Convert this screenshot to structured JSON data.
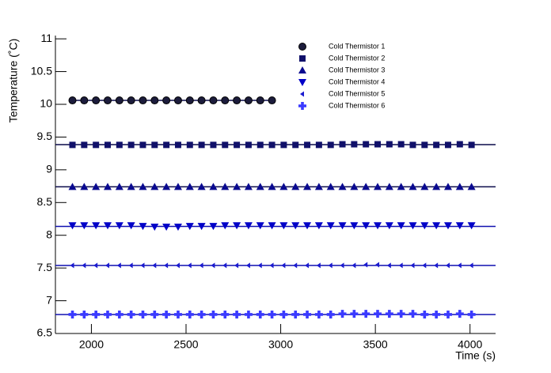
{
  "chart_data": {
    "type": "scatter",
    "x_label": "Time (s)",
    "y_label": "Temperature (˚C)",
    "xlim": [
      1810,
      4135
    ],
    "ylim": [
      6.5,
      11.05
    ],
    "xticks": [
      2000,
      2500,
      3000,
      3500,
      4000
    ],
    "yticks": [
      6.5,
      7,
      7.5,
      8,
      8.5,
      9,
      9.5,
      10,
      10.5,
      11
    ],
    "legend": "top-right",
    "x": [
      1900,
      1962,
      2024,
      2086,
      2148,
      2210,
      2272,
      2334,
      2396,
      2458,
      2520,
      2582,
      2644,
      2706,
      2768,
      2830,
      2892,
      2954,
      3016,
      3078,
      3140,
      3202,
      3264,
      3326,
      3388,
      3450,
      3512,
      3574,
      3636,
      3698,
      3760,
      3822,
      3884,
      3946,
      4008
    ],
    "series": [
      {
        "name": "Cold Thermistor 1",
        "color": "#1c1c3c",
        "marker": "circle",
        "fit": 10.06,
        "values": [
          10.06,
          10.06,
          10.06,
          10.06,
          10.06,
          10.06,
          10.06,
          10.06,
          10.06,
          10.06,
          10.06,
          10.06,
          10.06,
          10.06,
          10.06,
          10.06,
          10.06,
          10.06,
          null,
          null,
          null,
          null,
          null,
          null,
          null,
          null,
          null,
          null,
          null,
          null,
          null,
          null,
          null,
          null,
          null
        ]
      },
      {
        "name": "Cold Thermistor 2",
        "color": "#10106a",
        "marker": "square",
        "fit": 9.385,
        "values": [
          9.38,
          9.38,
          9.38,
          9.38,
          9.38,
          9.38,
          9.38,
          9.38,
          9.38,
          9.38,
          9.38,
          9.38,
          9.38,
          9.38,
          9.38,
          9.38,
          9.38,
          9.38,
          9.38,
          9.38,
          9.38,
          9.38,
          9.38,
          9.39,
          9.39,
          9.39,
          9.39,
          9.39,
          9.39,
          9.38,
          9.38,
          9.38,
          9.38,
          9.39,
          9.38
        ]
      },
      {
        "name": "Cold Thermistor 3",
        "color": "#0a0a90",
        "marker": "triangle-up",
        "fit": 8.74,
        "values": [
          8.74,
          8.74,
          8.74,
          8.74,
          8.74,
          8.74,
          8.74,
          8.74,
          8.74,
          8.74,
          8.74,
          8.74,
          8.74,
          8.74,
          8.74,
          8.74,
          8.74,
          8.74,
          8.74,
          8.74,
          8.74,
          8.74,
          8.74,
          8.74,
          8.74,
          8.74,
          8.74,
          8.74,
          8.74,
          8.74,
          8.74,
          8.74,
          8.74,
          8.74,
          8.74
        ]
      },
      {
        "name": "Cold Thermistor 4",
        "color": "#0000c8",
        "marker": "triangle-down",
        "fit": 8.135,
        "values": [
          8.15,
          8.15,
          8.15,
          8.15,
          8.15,
          8.15,
          8.14,
          8.13,
          8.13,
          8.13,
          8.14,
          8.14,
          8.14,
          8.15,
          8.15,
          8.15,
          8.15,
          8.15,
          8.15,
          8.15,
          8.15,
          8.15,
          8.15,
          8.15,
          8.15,
          8.15,
          8.15,
          8.15,
          8.15,
          8.15,
          8.15,
          8.15,
          8.15,
          8.15,
          8.15
        ]
      },
      {
        "name": "Cold Thermistor 5",
        "color": "#1a1ad0",
        "marker": "triangle-left",
        "fit": 7.54,
        "values": [
          7.54,
          7.54,
          7.54,
          7.54,
          7.54,
          7.54,
          7.54,
          7.54,
          7.54,
          7.54,
          7.54,
          7.54,
          7.54,
          7.54,
          7.54,
          7.54,
          7.54,
          7.54,
          7.54,
          7.54,
          7.54,
          7.54,
          7.54,
          7.54,
          7.54,
          7.55,
          7.55,
          7.54,
          7.54,
          7.54,
          7.54,
          7.54,
          7.54,
          7.54,
          7.54
        ]
      },
      {
        "name": "Cold Thermistor 6",
        "color": "#3a3aff",
        "marker": "cross",
        "fit": 6.79,
        "values": [
          6.79,
          6.79,
          6.79,
          6.79,
          6.79,
          6.79,
          6.79,
          6.79,
          6.79,
          6.79,
          6.79,
          6.79,
          6.79,
          6.79,
          6.79,
          6.79,
          6.79,
          6.79,
          6.79,
          6.79,
          6.79,
          6.79,
          6.79,
          6.8,
          6.8,
          6.8,
          6.8,
          6.8,
          6.8,
          6.8,
          6.79,
          6.79,
          6.79,
          6.8,
          6.79
        ]
      }
    ]
  }
}
